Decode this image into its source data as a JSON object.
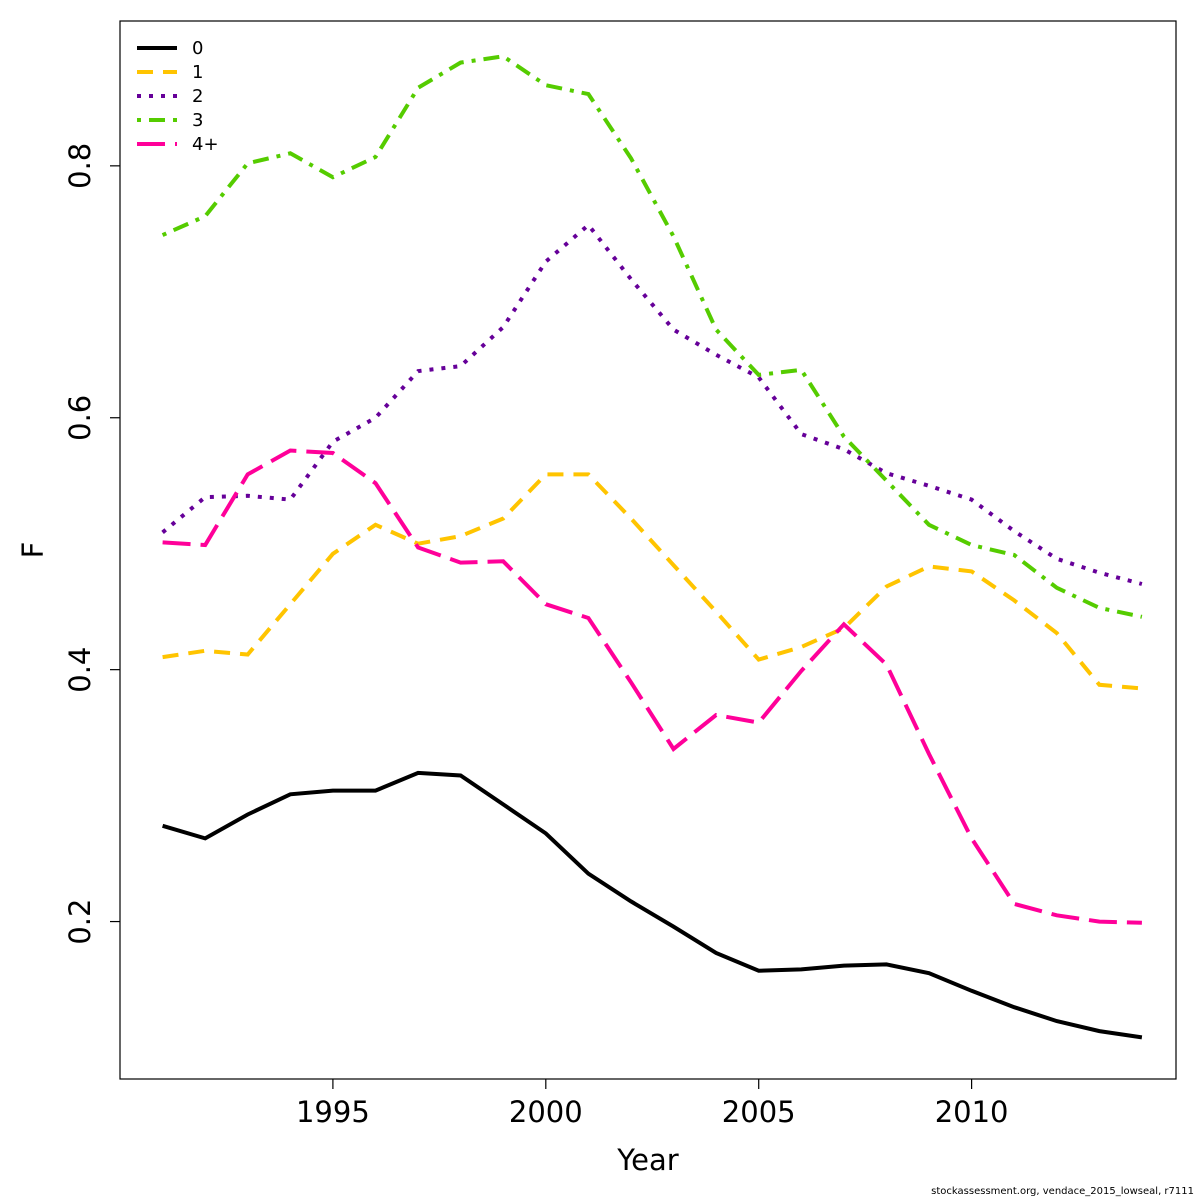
{
  "chart_data": {
    "type": "line",
    "title": "",
    "xlabel": "Year",
    "ylabel": "F",
    "xlim": [
      1990,
      2014.8
    ],
    "ylim": [
      0.075,
      0.915
    ],
    "xticks": [
      1995,
      2000,
      2005,
      2010
    ],
    "yticks": [
      0.2,
      0.4,
      0.6,
      0.8
    ],
    "ytick_labels": [
      "0.2",
      "0.4",
      "0.6",
      "0.8"
    ],
    "xtick_labels": [
      "1995",
      "2000",
      "2005",
      "2010"
    ],
    "grid": false,
    "legend_position": "top-left",
    "x": [
      1991,
      1992,
      1993,
      1994,
      1995,
      1996,
      1997,
      1998,
      1999,
      2000,
      2001,
      2002,
      2003,
      2004,
      2005,
      2006,
      2007,
      2008,
      2009,
      2010,
      2011,
      2012,
      2013,
      2014
    ],
    "series": [
      {
        "name": "0",
        "color": "#000000",
        "dash": "solid",
        "values": [
          0.276,
          0.266,
          0.285,
          0.301,
          0.304,
          0.304,
          0.318,
          0.316,
          0.293,
          0.27,
          0.238,
          0.216,
          0.196,
          0.175,
          0.161,
          0.162,
          0.165,
          0.166,
          0.159,
          0.145,
          0.132,
          0.121,
          0.113,
          0.108
        ]
      },
      {
        "name": "1",
        "color": "#FFC400",
        "dash": "dashed",
        "values": [
          0.41,
          0.415,
          0.412,
          0.452,
          0.492,
          0.515,
          0.5,
          0.506,
          0.52,
          0.555,
          0.555,
          0.52,
          0.483,
          0.446,
          0.408,
          0.418,
          0.433,
          0.466,
          0.482,
          0.478,
          0.455,
          0.429,
          0.388,
          0.385
        ]
      },
      {
        "name": "2",
        "color": "#660099",
        "dash": "dotted",
        "values": [
          0.509,
          0.537,
          0.538,
          0.535,
          0.581,
          0.6,
          0.637,
          0.641,
          0.672,
          0.724,
          0.753,
          0.71,
          0.67,
          0.65,
          0.632,
          0.587,
          0.575,
          0.556,
          0.546,
          0.535,
          0.51,
          0.488,
          0.477,
          0.468
        ]
      },
      {
        "name": "3",
        "color": "#55CC00",
        "dash": "dotdash",
        "values": [
          0.745,
          0.76,
          0.802,
          0.81,
          0.791,
          0.807,
          0.862,
          0.882,
          0.887,
          0.864,
          0.857,
          0.806,
          0.744,
          0.67,
          0.634,
          0.638,
          0.585,
          0.55,
          0.515,
          0.499,
          0.491,
          0.465,
          0.449,
          0.442
        ]
      },
      {
        "name": "4+",
        "color": "#FF0099",
        "dash": "longdash",
        "values": [
          0.501,
          0.499,
          0.555,
          0.574,
          0.572,
          0.548,
          0.497,
          0.485,
          0.486,
          0.452,
          0.441,
          0.39,
          0.337,
          0.364,
          0.358,
          0.399,
          0.436,
          0.404,
          0.333,
          0.266,
          0.214,
          0.205,
          0.2,
          0.199
        ]
      }
    ]
  },
  "footer": "stockassessment.org, vendace_2015_lowseal, r7111"
}
